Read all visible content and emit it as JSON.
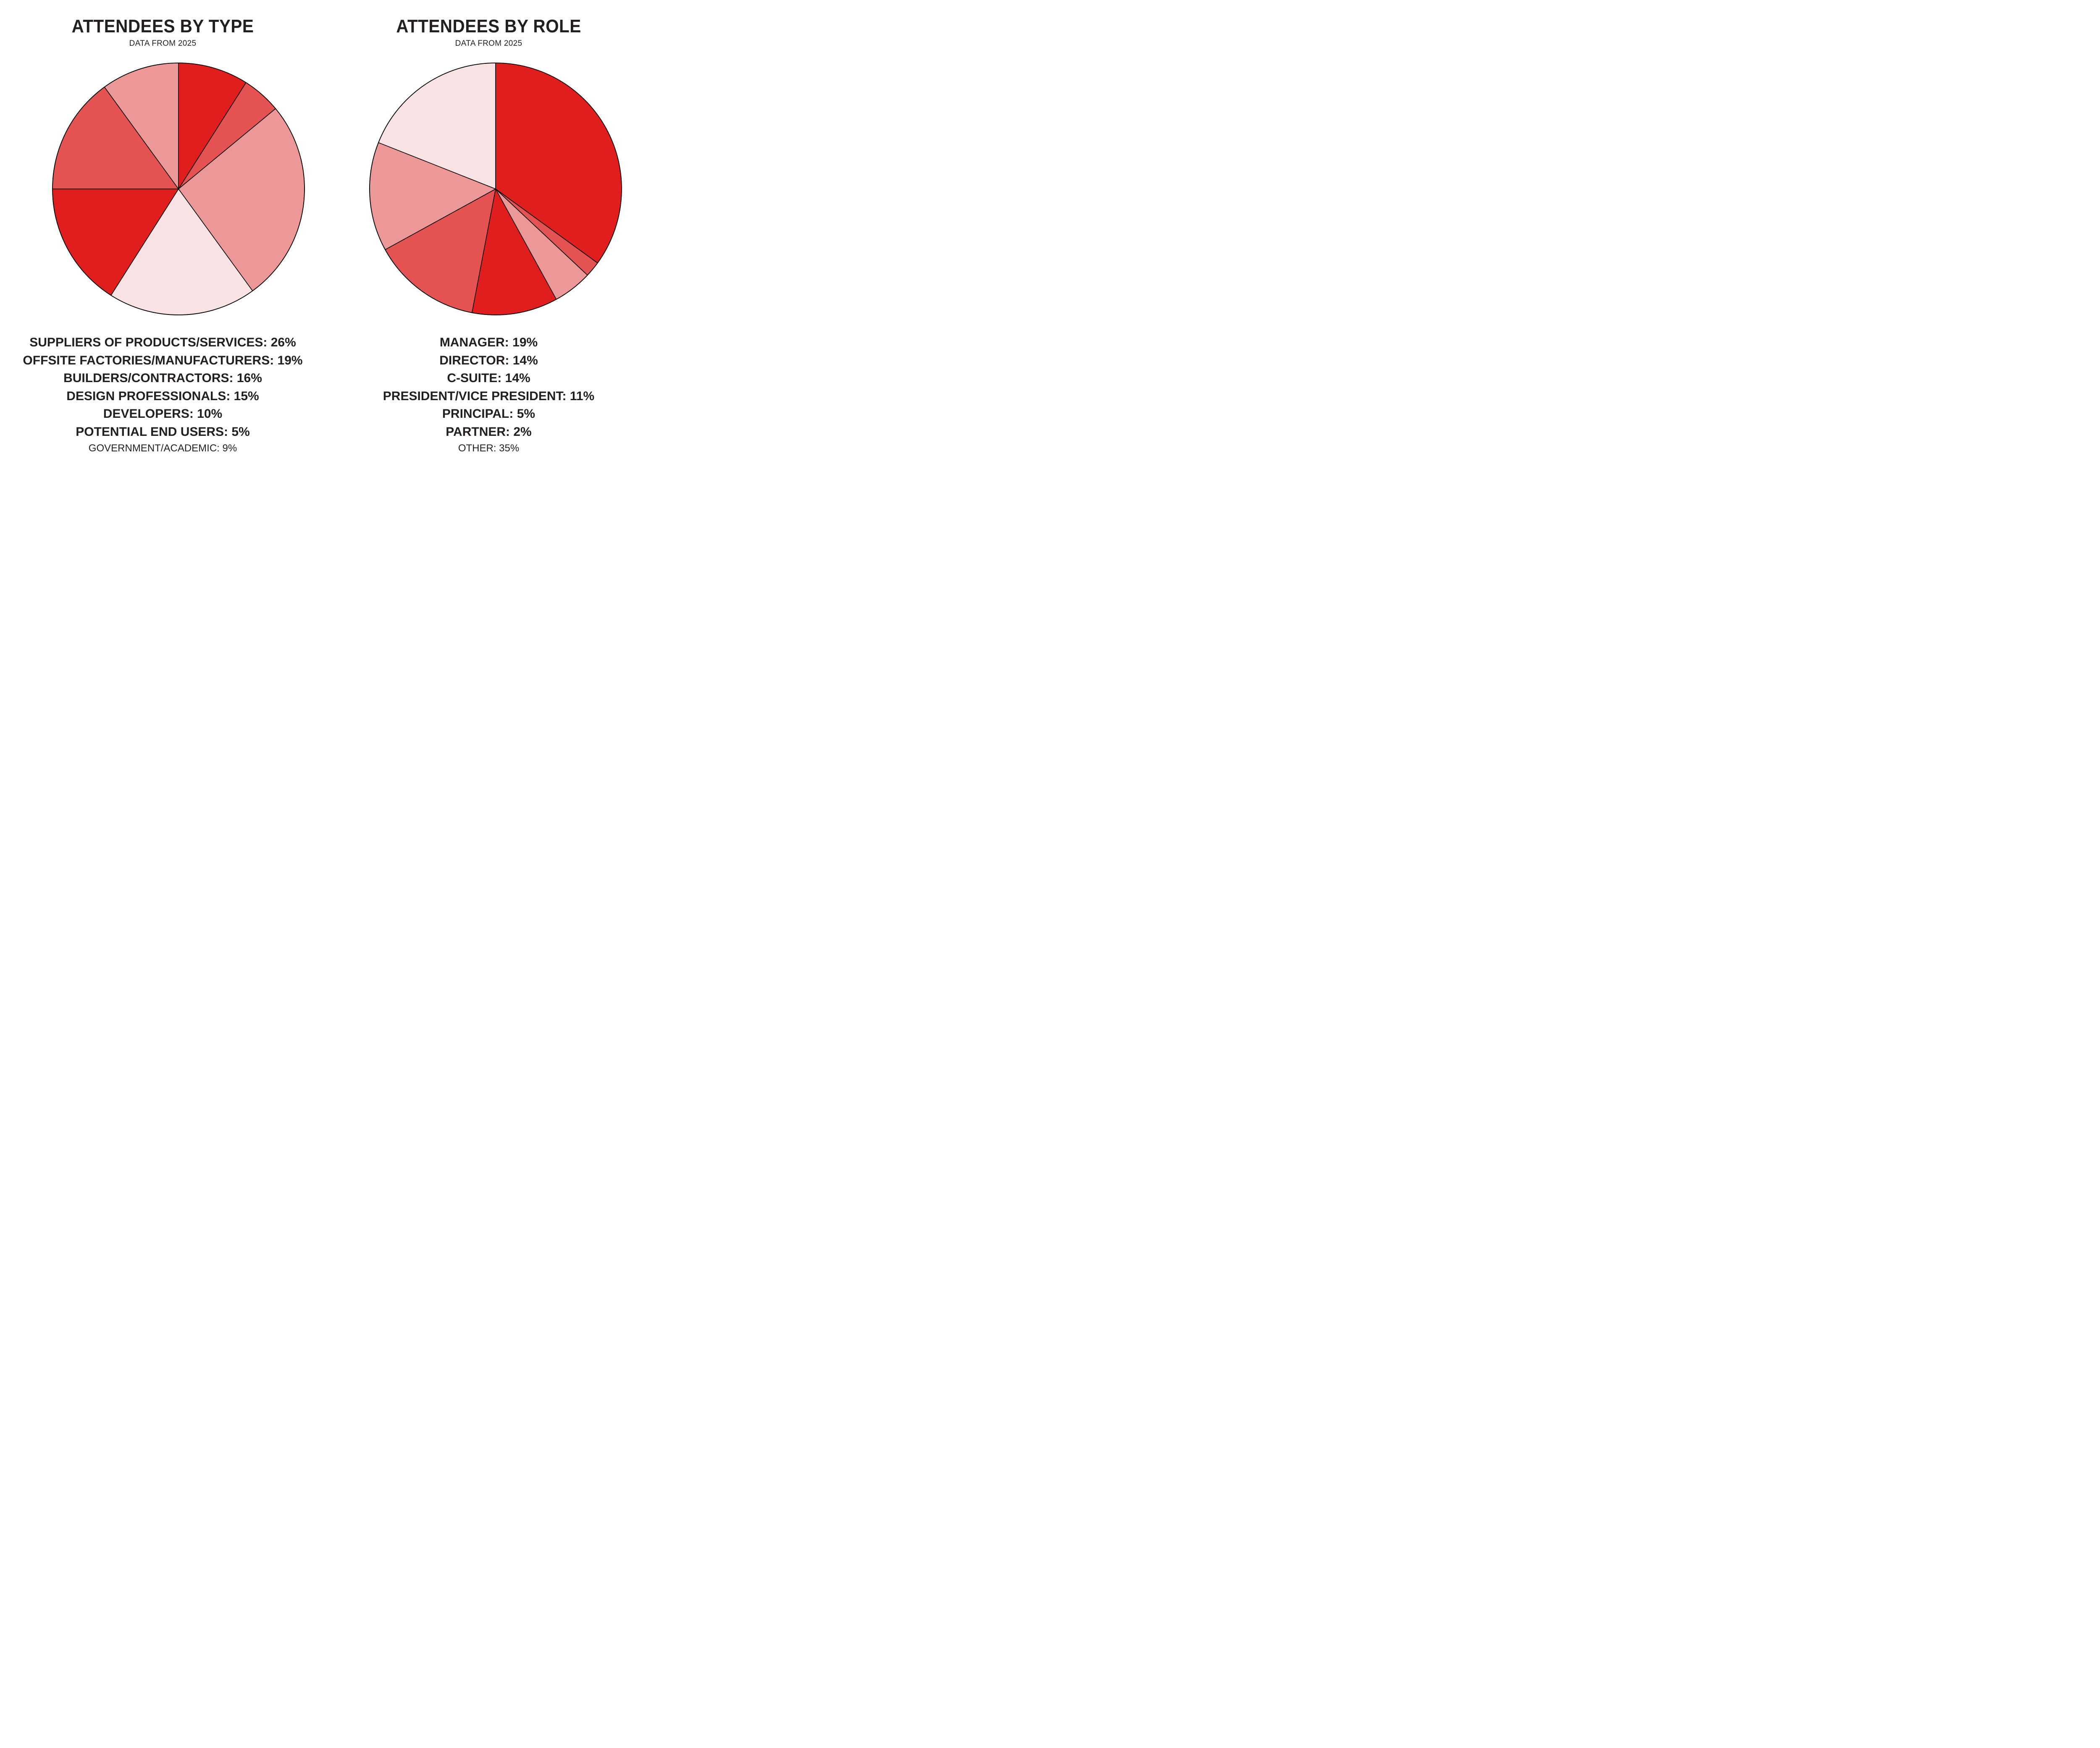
{
  "left": {
    "title": "ATTENDEES BY TYPE",
    "subtitle": "DATA FROM 2025",
    "legend": [
      {
        "text": "SUPPLIERS OF PRODUCTS/SERVICES: 26%",
        "minor": false
      },
      {
        "text": "OFFSITE FACTORIES/MANUFACTURERS: 19%",
        "minor": false
      },
      {
        "text": "BUILDERS/CONTRACTORS: 16%",
        "minor": false
      },
      {
        "text": "DESIGN PROFESSIONALS: 15%",
        "minor": false
      },
      {
        "text": "DEVELOPERS: 10%",
        "minor": false
      },
      {
        "text": "POTENTIAL END USERS: 5%",
        "minor": false
      },
      {
        "text": "GOVERNMENT/ACADEMIC: 9%",
        "minor": true
      }
    ]
  },
  "right": {
    "title": "ATTENDEES BY ROLE",
    "subtitle": "DATA FROM 2025",
    "legend": [
      {
        "text": "MANAGER: 19%",
        "minor": false
      },
      {
        "text": "DIRECTOR: 14%",
        "minor": false
      },
      {
        "text": "C-SUITE: 14%",
        "minor": false
      },
      {
        "text": "PRESIDENT/VICE PRESIDENT: 11%",
        "minor": false
      },
      {
        "text": "PRINCIPAL: 5%",
        "minor": false
      },
      {
        "text": "PARTNER: 2%",
        "minor": false
      },
      {
        "text": "OTHER: 35%",
        "minor": true
      }
    ]
  },
  "colors": {
    "red": "#e01e1e",
    "medium": "#e45252",
    "light": "#ec9899",
    "pale": "#f8e2e3",
    "stroke": "#000000"
  },
  "chart_data": [
    {
      "type": "pie",
      "title": "ATTENDEES BY TYPE",
      "subtitle": "DATA FROM 2025",
      "start_angle": "12 o'clock, clockwise",
      "categories": [
        "Government/Academic",
        "Potential End Users",
        "Suppliers of Products/Services",
        "Offsite Factories/Manufacturers",
        "Builders/Contractors",
        "Design Professionals",
        "Developers"
      ],
      "values": [
        9,
        5,
        26,
        19,
        16,
        15,
        10
      ],
      "colors": [
        "#e01e1e",
        "#e45252",
        "#ec9899",
        "#f8e2e3",
        "#e01e1e",
        "#e45252",
        "#ec9899"
      ],
      "legend_position": "bottom"
    },
    {
      "type": "pie",
      "title": "ATTENDEES BY ROLE",
      "subtitle": "DATA FROM 2025",
      "start_angle": "12 o'clock, clockwise",
      "categories": [
        "Other",
        "Partner",
        "Principal",
        "President/Vice President",
        "C-Suite",
        "Director",
        "Manager"
      ],
      "values": [
        35,
        2,
        5,
        11,
        14,
        14,
        19
      ],
      "colors": [
        "#e01e1e",
        "#e45252",
        "#ec9899",
        "#e01e1e",
        "#e45252",
        "#ec9899",
        "#f8e2e3"
      ],
      "legend_position": "bottom"
    }
  ]
}
